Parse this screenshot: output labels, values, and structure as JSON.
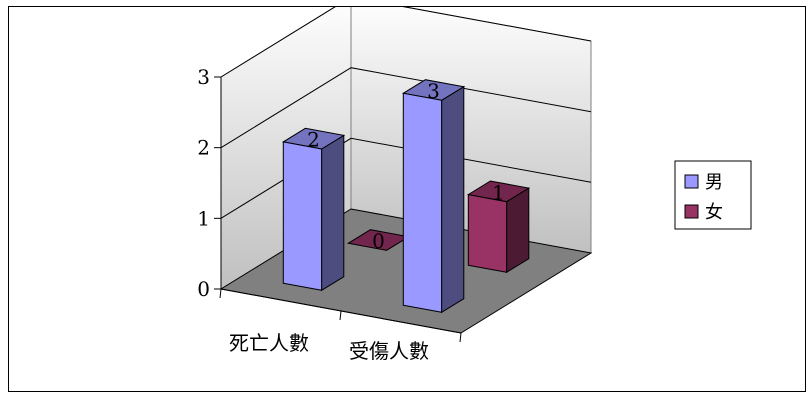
{
  "chart_data": {
    "type": "bar",
    "subtype": "3d-clustered-column",
    "categories": [
      "死亡人數",
      "受傷人數"
    ],
    "series": [
      {
        "name": "男",
        "values": [
          2,
          3
        ],
        "color": "#9999ff"
      },
      {
        "name": "女",
        "values": [
          0,
          1
        ],
        "color": "#993366"
      }
    ],
    "title": "",
    "xlabel": "",
    "ylabel": "",
    "ylim": [
      0,
      3
    ],
    "yticks": [
      0,
      1,
      2,
      3
    ],
    "grid": true,
    "legend": "right",
    "data_labels": true,
    "wall_color": "#c0c0c0",
    "floor_color": "#808080"
  }
}
